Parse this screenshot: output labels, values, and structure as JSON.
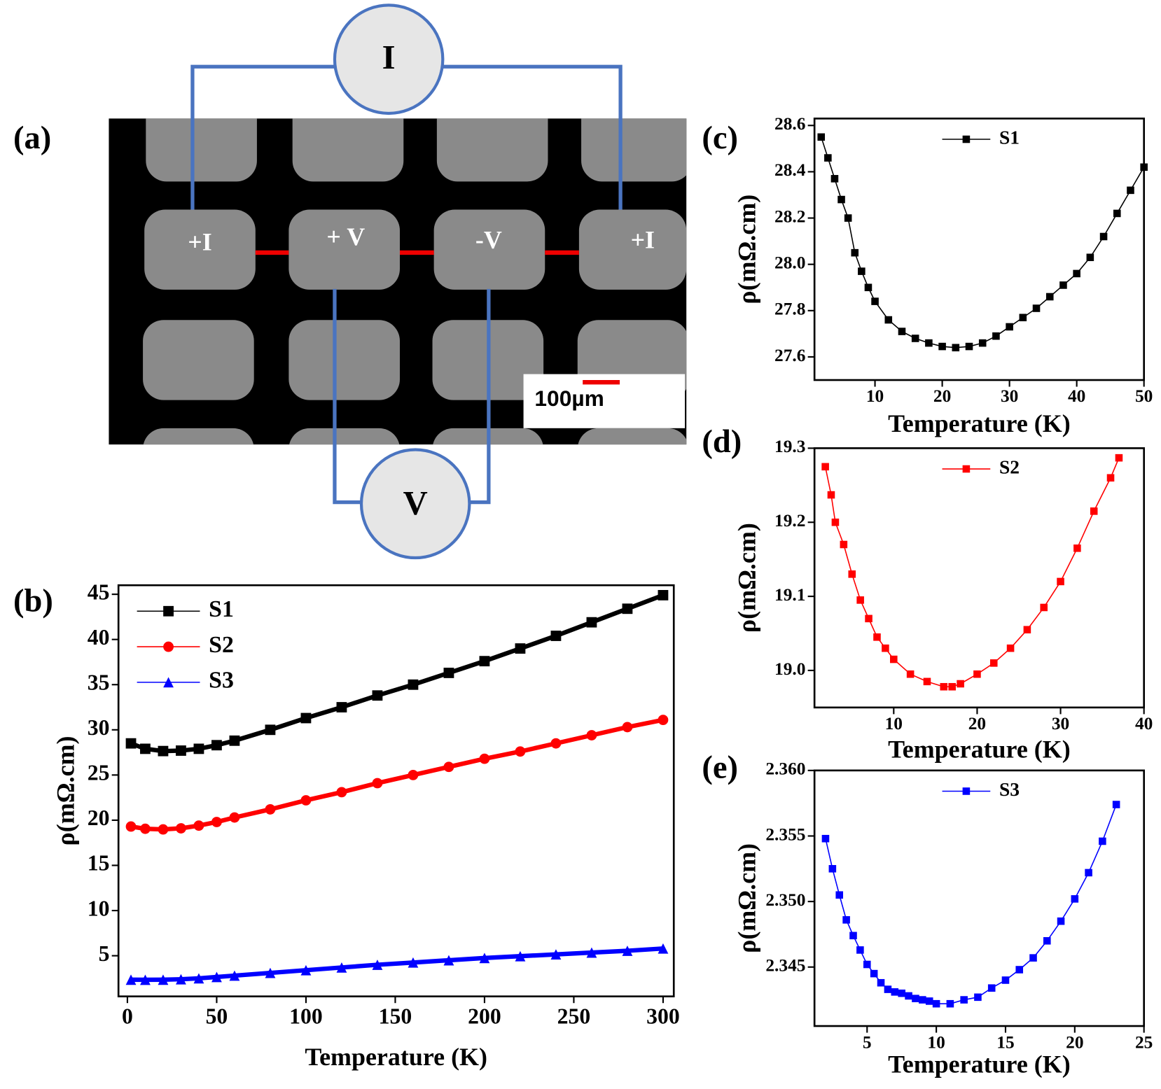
{
  "panel_a": {
    "label": "(a)",
    "current_meter": "I",
    "voltage_meter": "V",
    "contacts": [
      "+I",
      "+ V",
      "-V",
      "+I"
    ],
    "scale_bar": "100µm"
  },
  "chart_data": [
    {
      "type": "line",
      "panel": "(b)",
      "xlabel": "Temperature (K)",
      "ylabel": "ρ(mΩ.cm)",
      "legend": "upper left",
      "x": [
        2,
        10,
        20,
        30,
        40,
        50,
        60,
        80,
        100,
        120,
        140,
        160,
        180,
        200,
        220,
        240,
        260,
        280,
        300
      ],
      "series": [
        {
          "name": "S1",
          "color": "#000000",
          "marker": "square",
          "values": [
            28.5,
            27.9,
            27.65,
            27.7,
            27.9,
            28.3,
            28.8,
            30.0,
            31.3,
            32.5,
            33.8,
            35.0,
            36.3,
            37.6,
            39.0,
            40.4,
            41.9,
            43.4,
            44.9
          ]
        },
        {
          "name": "S2",
          "color": "#ff0000",
          "marker": "circle",
          "values": [
            19.3,
            19.05,
            18.98,
            19.1,
            19.4,
            19.8,
            20.3,
            21.2,
            22.2,
            23.1,
            24.1,
            25.0,
            25.9,
            26.8,
            27.6,
            28.5,
            29.4,
            30.3,
            31.1
          ]
        },
        {
          "name": "S3",
          "color": "#0000ff",
          "marker": "triangle",
          "values": [
            2.35,
            2.34,
            2.35,
            2.4,
            2.5,
            2.65,
            2.8,
            3.1,
            3.4,
            3.7,
            4.0,
            4.25,
            4.5,
            4.75,
            4.95,
            5.15,
            5.35,
            5.55,
            5.8
          ]
        }
      ],
      "xlim": [
        -5,
        306
      ],
      "ylim": [
        0.5,
        46
      ],
      "xticks": [
        0,
        50,
        100,
        150,
        200,
        250,
        300
      ],
      "yticks": [
        5,
        10,
        15,
        20,
        25,
        30,
        35,
        40,
        45
      ],
      "grid": false
    },
    {
      "type": "line",
      "panel": "(c)",
      "xlabel": "Temperature (K)",
      "ylabel": "ρ(mΩ.cm)",
      "legend": "upper center",
      "x": [
        2,
        3,
        4,
        5,
        6,
        7,
        8,
        9,
        10,
        12,
        14,
        16,
        18,
        20,
        22,
        24,
        26,
        28,
        30,
        32,
        34,
        36,
        38,
        40,
        42,
        44,
        46,
        48,
        50
      ],
      "series": [
        {
          "name": "S1",
          "color": "#000000",
          "marker": "square",
          "values": [
            28.55,
            28.46,
            28.37,
            28.28,
            28.2,
            28.05,
            27.97,
            27.9,
            27.84,
            27.76,
            27.71,
            27.68,
            27.66,
            27.645,
            27.64,
            27.645,
            27.66,
            27.69,
            27.73,
            27.77,
            27.81,
            27.86,
            27.91,
            27.96,
            28.03,
            28.12,
            28.22,
            28.32,
            28.42
          ]
        }
      ],
      "xlim": [
        1,
        50
      ],
      "ylim": [
        27.5,
        28.63
      ],
      "xticks": [
        10,
        20,
        30,
        40,
        50
      ],
      "yticks": [
        27.6,
        27.8,
        {
          "value": 28,
          "label": "28.0"
        },
        28.2,
        28.4,
        28.6
      ],
      "grid": false
    },
    {
      "type": "line",
      "panel": "(d)",
      "xlabel": "Temperature (K)",
      "ylabel": "ρ(mΩ.cm)",
      "legend": "upper center",
      "x": [
        1.8,
        2.5,
        3,
        4,
        5,
        6,
        7,
        8,
        9,
        10,
        12,
        14,
        16,
        17,
        18,
        20,
        22,
        24,
        26,
        28,
        30,
        32,
        34,
        36,
        37
      ],
      "series": [
        {
          "name": "S2",
          "color": "#ff0000",
          "marker": "square",
          "values": [
            19.275,
            19.237,
            19.2,
            19.17,
            19.13,
            19.095,
            19.07,
            19.045,
            19.03,
            19.015,
            18.995,
            18.985,
            18.978,
            18.978,
            18.982,
            18.995,
            19.01,
            19.03,
            19.055,
            19.085,
            19.12,
            19.165,
            19.215,
            19.26,
            19.287
          ]
        }
      ],
      "xlim": [
        0.5,
        40
      ],
      "ylim": [
        18.95,
        19.3
      ],
      "xticks": [
        10,
        20,
        30,
        40
      ],
      "yticks": [
        {
          "value": 19,
          "label": "19.0"
        },
        19.1,
        19.2,
        19.3
      ],
      "grid": false
    },
    {
      "type": "line",
      "panel": "(e)",
      "xlabel": "Temperature (K)",
      "ylabel": "ρ(mΩ.cm)",
      "legend": "upper center",
      "x": [
        2,
        2.5,
        3,
        3.5,
        4,
        4.5,
        5,
        5.5,
        6,
        6.5,
        7,
        7.5,
        8,
        8.5,
        9,
        9.5,
        10,
        11,
        12,
        13,
        14,
        15,
        16,
        17,
        18,
        19,
        20,
        21,
        22,
        23
      ],
      "series": [
        {
          "name": "S3",
          "color": "#0000ff",
          "marker": "square",
          "values": [
            2.3548,
            2.3525,
            2.3505,
            2.3486,
            2.3474,
            2.3463,
            2.3452,
            2.3445,
            2.3438,
            2.3433,
            2.3431,
            2.343,
            2.3428,
            2.3426,
            2.3425,
            2.3424,
            2.3422,
            2.3422,
            2.3425,
            2.3427,
            2.3434,
            2.344,
            2.3448,
            2.3457,
            2.347,
            2.3485,
            2.3502,
            2.3522,
            2.3546,
            2.3574
          ]
        }
      ],
      "xlim": [
        1.2,
        25
      ],
      "ylim": [
        2.3405,
        2.36
      ],
      "xticks": [
        5,
        10,
        15,
        20,
        25
      ],
      "yticks": [
        2.345,
        {
          "value": 2.35,
          "label": "2.350"
        },
        2.355,
        {
          "value": 2.36,
          "label": "2.360"
        }
      ],
      "grid": false
    }
  ]
}
